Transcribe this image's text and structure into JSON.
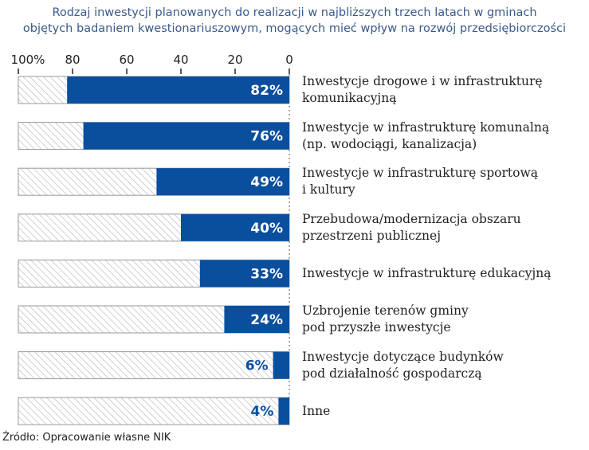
{
  "title_line1": "Rodzaj inwestycji planowanych do realizacji w najbliższych trzech latach w gminach",
  "title_line2": "objętych badaniem kwestionariuszowym, mogących mieć wpływ na rozwój przedsiębiorczości",
  "source": "Źródło: Opracowanie własne NIK",
  "chart_data": {
    "type": "bar",
    "orientation": "horizontal-reversed",
    "xlim": [
      0,
      100
    ],
    "ticks": [
      "100%",
      "80",
      "60",
      "40",
      "20",
      "0"
    ],
    "tick_values": [
      100,
      80,
      60,
      40,
      20,
      0
    ],
    "categories": [
      [
        "Inwestycje drogowe i w infrastrukturę",
        "komunikacyjną"
      ],
      [
        "Inwestycje w infrastrukturę komunalną",
        "(np. wodociągi, kanalizacja)"
      ],
      [
        "Inwestycje w infrastrukturę sportową",
        "i kultury"
      ],
      [
        "Przebudowa/modernizacja obszaru",
        "przestrzeni publicznej"
      ],
      [
        "Inwestycje w infrastrukturę edukacyjną"
      ],
      [
        "Uzbrojenie terenów gminy",
        "pod przyszłe inwestycje"
      ],
      [
        "Inwestycje dotyczące budynków",
        "pod działalność gospodarczą"
      ],
      [
        "Inne"
      ]
    ],
    "values": [
      82,
      76,
      49,
      40,
      33,
      24,
      6,
      4
    ],
    "value_labels": [
      "82%",
      "76%",
      "49%",
      "40%",
      "33%",
      "24%",
      "6%",
      "4%"
    ],
    "colors": {
      "bar": "#0a4f9e",
      "remainder": "hatched"
    }
  }
}
